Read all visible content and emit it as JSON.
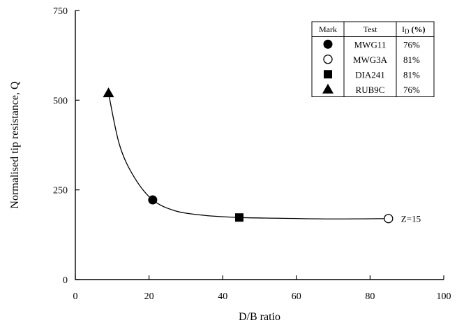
{
  "chart_data": {
    "type": "scatter",
    "title": "",
    "xlabel": "D/B ratio",
    "ylabel": "Normalised tip resistance, Q",
    "xlim": [
      0,
      100
    ],
    "ylim": [
      0,
      750
    ],
    "x_ticks": [
      0,
      20,
      40,
      60,
      80,
      100
    ],
    "y_ticks": [
      0,
      250,
      500,
      750
    ],
    "grid": false,
    "series": [
      {
        "name": "MWG11",
        "marker": "filled-circle",
        "points": [
          [
            21,
            222
          ]
        ]
      },
      {
        "name": "MWG3A",
        "marker": "open-circle",
        "points": [
          [
            85,
            170
          ]
        ]
      },
      {
        "name": "DIA241",
        "marker": "filled-square",
        "points": [
          [
            44.5,
            173
          ]
        ]
      },
      {
        "name": "RUB9C",
        "marker": "filled-triangle",
        "points": [
          [
            9,
            520
          ]
        ]
      }
    ],
    "trend_curve": [
      [
        9,
        520
      ],
      [
        12,
        375
      ],
      [
        16,
        285
      ],
      [
        21,
        222
      ],
      [
        27,
        192
      ],
      [
        35,
        179
      ],
      [
        44.5,
        173
      ],
      [
        55,
        171
      ],
      [
        70,
        169
      ],
      [
        85,
        170
      ]
    ],
    "annotations": [
      {
        "text": "Z=15",
        "x": 85,
        "y": 170
      }
    ],
    "legend": {
      "placement": "top-right",
      "headers": {
        "mark": "Mark",
        "test": "Test",
        "id_prefix": "I",
        "id_sub": "D",
        "id_suffix": " (%)"
      },
      "rows": [
        {
          "marker": "filled-circle",
          "test": "MWG11",
          "id": "76%"
        },
        {
          "marker": "open-circle",
          "test": "MWG3A",
          "id": "81%"
        },
        {
          "marker": "filled-square",
          "test": "DIA241",
          "id": "81%"
        },
        {
          "marker": "filled-triangle",
          "test": "RUB9C",
          "id": "76%"
        }
      ]
    }
  }
}
